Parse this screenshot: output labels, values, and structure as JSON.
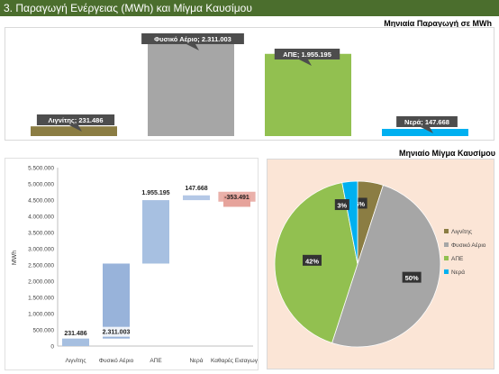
{
  "header": {
    "title": "3. Παραγωγή Ενέργειας (MWh) και Μίγμα Καυσίμου"
  },
  "chart_data": [
    {
      "type": "bar",
      "title": "Μηνιαία Παραγωγή σε MWh",
      "categories": [
        "Λιγνίτης",
        "Φυσικό Αέριο",
        "ΑΠΕ",
        "Νερά"
      ],
      "values": [
        231486,
        2311003,
        1955195,
        147668
      ],
      "data_labels": [
        "Λιγνίτης; 231.486",
        "Φυσικό Αέριο; 2.311.003",
        "ΑΠΕ; 1.955.195",
        "Νερά; 147.668"
      ],
      "colors": [
        "#8b7d43",
        "#a6a6a6",
        "#92c050",
        "#00b0f0"
      ],
      "ylim": [
        0,
        2400000
      ],
      "legend": "none",
      "grid": false
    },
    {
      "type": "bar",
      "subtype": "waterfall",
      "title": "",
      "categories": [
        "Λιγνίτης",
        "Φυσικό Αέριο",
        "ΑΠΕ",
        "Νερά",
        "Καθαρές Εισαγωγές"
      ],
      "values": [
        231486,
        2311003,
        1955195,
        147668,
        -353491
      ],
      "data_labels": [
        "231.486",
        "2.311.003",
        "1.955.195",
        "147.668",
        "-353.491"
      ],
      "ylabel": "MWh",
      "ylim": [
        0,
        5500000
      ],
      "yticks": [
        0,
        500000,
        1000000,
        1500000,
        2000000,
        2500000,
        3000000,
        3500000,
        4000000,
        4500000,
        5000000,
        5500000
      ],
      "ytick_labels": [
        "0",
        "500.000",
        "1.000.000",
        "1.500.000",
        "2.000.000",
        "2.500.000",
        "3.000.000",
        "3.500.000",
        "4.000.000",
        "4.500.000",
        "5.000.000",
        "5.500.000"
      ],
      "colors": [
        "#a6bfe0",
        "#98b3da",
        "#a7c0e1",
        "#b4c8e6",
        "#e6a39b"
      ],
      "grid": false,
      "legend": "none"
    },
    {
      "type": "pie",
      "title": "Μηνιαίο Μίγμα Καυσίμου",
      "categories": [
        "Λιγνίτης",
        "Φυσικό Αέριο",
        "ΑΠΕ",
        "Νερά"
      ],
      "values": [
        5,
        50,
        42,
        3
      ],
      "data_labels": [
        "5%",
        "50%",
        "42%",
        "3%"
      ],
      "colors": [
        "#8b7d43",
        "#a6a6a6",
        "#92c050",
        "#00b0f0"
      ],
      "legend": "right"
    }
  ]
}
